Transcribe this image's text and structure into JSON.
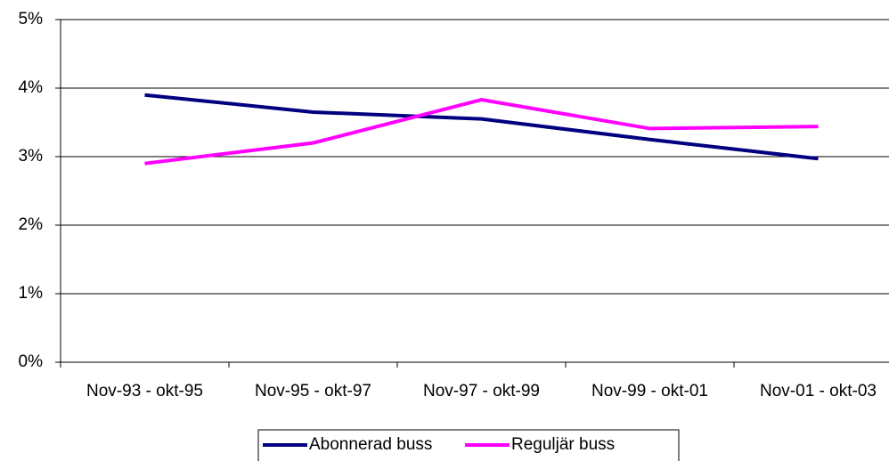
{
  "chart_data": {
    "type": "line",
    "categories": [
      "Nov-93 - okt-95",
      "Nov-95 - okt-97",
      "Nov-97 - okt-99",
      "Nov-99 - okt-01",
      "Nov-01 - okt-03"
    ],
    "series": [
      {
        "name": "Abonnerad buss",
        "color": "#000080",
        "values": [
          3.9,
          3.65,
          3.55,
          3.25,
          2.97
        ]
      },
      {
        "name": "Reguljär buss",
        "color": "#ff00ff",
        "values": [
          2.9,
          3.2,
          3.83,
          3.41,
          3.44
        ]
      }
    ],
    "ylim": [
      0,
      5
    ],
    "yticks": [
      {
        "value": 0,
        "label": "0%"
      },
      {
        "value": 1,
        "label": "1%"
      },
      {
        "value": 2,
        "label": "2%"
      },
      {
        "value": 3,
        "label": "3%"
      },
      {
        "value": 4,
        "label": "4%"
      },
      {
        "value": 5,
        "label": "5%"
      }
    ],
    "grid": true,
    "legend": "bottom"
  }
}
